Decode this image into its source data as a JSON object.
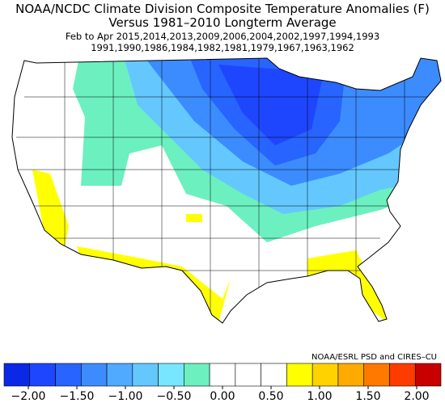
{
  "header": {
    "title": "NOAA/NCDC Climate Division Composite Temperature Anomalies (F)",
    "subtitle": "Versus 1981–2010 Longterm Average",
    "years_line1": "Feb to Apr  2015,2014,2013,2009,2006,2004,2002,1997,1994,1993",
    "years_line2": "1991,1990,1986,1984,1982,1981,1979,1967,1963,1962"
  },
  "credit": "NOAA/ESRL PSD and CIRES–CU",
  "colorbar": {
    "lim": [
      -2.25,
      2.25
    ],
    "colors": [
      "#0a28e6",
      "#1e46ff",
      "#2864ff",
      "#3c8cff",
      "#50aaff",
      "#64c8ff",
      "#78e6ff",
      "#6cf0c0",
      "#ffffff",
      "#ffffff",
      "#ffffff",
      "#ffff00",
      "#ffd200",
      "#ffaa00",
      "#ff7800",
      "#ff3c00",
      "#c80000"
    ],
    "ticks": [
      {
        "value": -2,
        "label": "−2.00"
      },
      {
        "value": -1.5,
        "label": "−1.50"
      },
      {
        "value": -1,
        "label": "−1.00"
      },
      {
        "value": -0.5,
        "label": "−0.50"
      },
      {
        "value": 0,
        "label": "0.00"
      },
      {
        "value": 0.5,
        "label": "0.50"
      },
      {
        "value": 1,
        "label": "1.00"
      },
      {
        "value": 1.5,
        "label": "1.50"
      },
      {
        "value": 2,
        "label": "2.00"
      }
    ]
  }
}
